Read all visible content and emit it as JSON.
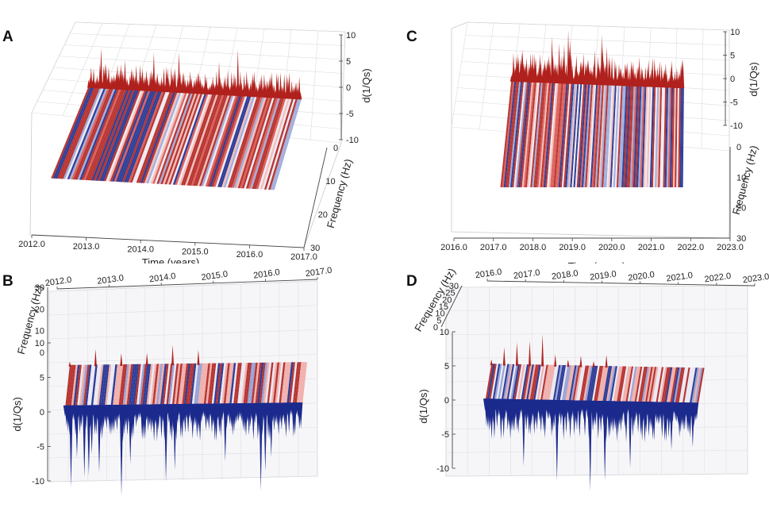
{
  "panel_labels": [
    "A",
    "B",
    "C",
    "D"
  ],
  "colors": {
    "red": "#b0201c",
    "blue": "#1b2a8c",
    "pale": "#e8e8f2",
    "box": "#c9c9cf"
  },
  "chart_data": [
    {
      "type": "surface3d",
      "panel": "A",
      "view": "oblique",
      "xlabel": "Time (years)",
      "ylabel": "Frequency (Hz)",
      "zlabel": "d(1/Qs)",
      "xticks": [
        "2012.0",
        "2013.0",
        "2014.0",
        "2015.0",
        "2016.0",
        "2017.0"
      ],
      "yticks": [
        "0",
        "10",
        "20",
        "30"
      ],
      "zticks": [
        "10",
        "5",
        "0",
        "-5",
        "-10"
      ],
      "xlim": [
        2012.0,
        2017.0
      ],
      "ylim": [
        0,
        30
      ],
      "zlim": [
        -10,
        10
      ],
      "data_start": 2012.2,
      "data_end": 2016.8
    },
    {
      "type": "surface3d",
      "panel": "B",
      "view": "front",
      "xlabel": "",
      "ylabel": "Frequency (Hz)",
      "zlabel": "d(1/Qs)",
      "xticks": [
        "2012.0",
        "2013.0",
        "2014.0",
        "2015.0",
        "2016.0",
        "2017.0"
      ],
      "yticks": [
        "30",
        "20",
        "10",
        "0"
      ],
      "zticks": [
        "10",
        "5",
        "0",
        "-5",
        "-10"
      ],
      "xlim": [
        2012.0,
        2017.0
      ],
      "ylim": [
        0,
        30
      ],
      "zlim": [
        -10,
        10
      ],
      "data_start": 2012.2,
      "data_end": 2016.8
    },
    {
      "type": "surface3d",
      "panel": "C",
      "view": "oblique",
      "xlabel": "Time (years)",
      "ylabel": "Frequency (Hz)",
      "zlabel": "d(1/Qs)",
      "xticks": [
        "2016.0",
        "2017.0",
        "2018.0",
        "2019.0",
        "2020.0",
        "2021.0",
        "2022.0",
        "2023.0"
      ],
      "yticks": [
        "0",
        "10",
        "20",
        "30"
      ],
      "zticks": [
        "10",
        "5",
        "0",
        "-5",
        "-10"
      ],
      "xlim": [
        2016.0,
        2023.0
      ],
      "ylim": [
        0,
        30
      ],
      "zlim": [
        -10,
        10
      ],
      "data_start": 2016.5,
      "data_end": 2022.4
    },
    {
      "type": "surface3d",
      "panel": "D",
      "view": "front",
      "xlabel": "",
      "ylabel": "Frequency (Hz)",
      "zlabel": "d(1/Qs)",
      "xticks": [
        "2016.0",
        "2017.0",
        "2018.0",
        "2019.0",
        "2020.0",
        "2021.0",
        "2022.0",
        "2023.0"
      ],
      "yticks": [
        "30",
        "25",
        "20",
        "15",
        "10",
        "5",
        "0"
      ],
      "zticks": [
        "10",
        "5",
        "0",
        "-5",
        "-10"
      ],
      "xlim": [
        2016.0,
        2023.0
      ],
      "ylim": [
        0,
        30
      ],
      "zlim": [
        -10,
        10
      ],
      "data_start": 2016.3,
      "data_end": 2022.4
    }
  ]
}
